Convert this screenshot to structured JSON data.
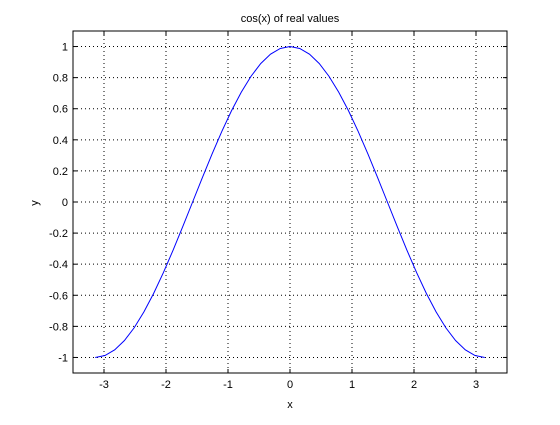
{
  "chart_data": {
    "type": "line",
    "title": "cos(x) of real values",
    "xlabel": "x",
    "ylabel": "y",
    "xlim": [
      -3.5,
      3.5
    ],
    "ylim": [
      -1.1,
      1.1
    ],
    "xticks": [
      -3,
      -2,
      -1,
      0,
      1,
      2,
      3
    ],
    "xtick_labels": [
      "-3",
      "-2",
      "-1",
      "0",
      "1",
      "2",
      "3"
    ],
    "yticks": [
      -1,
      -0.8,
      -0.6,
      -0.4,
      -0.2,
      0,
      0.2,
      0.4,
      0.6,
      0.8,
      1
    ],
    "ytick_labels": [
      "-1",
      "-0.8",
      "-0.6",
      "-0.4",
      "-0.2",
      "0",
      "0.2",
      "0.4",
      "0.6",
      "0.8",
      "1"
    ],
    "grid": true,
    "series": [
      {
        "color": "#0000ff",
        "x": [
          -3.1416,
          -2.9845,
          -2.8274,
          -2.6704,
          -2.5133,
          -2.3562,
          -2.1991,
          -2.042,
          -1.885,
          -1.7279,
          -1.5708,
          -1.4137,
          -1.2566,
          -1.0996,
          -0.9425,
          -0.7854,
          -0.6283,
          -0.4712,
          -0.3142,
          -0.1571,
          0,
          0.1571,
          0.3142,
          0.4712,
          0.6283,
          0.7854,
          0.9425,
          1.0996,
          1.2566,
          1.4137,
          1.5708,
          1.7279,
          1.885,
          2.042,
          2.1991,
          2.3562,
          2.5133,
          2.6704,
          2.8274,
          2.9845,
          3.1416
        ],
        "y": [
          -1,
          -0.9877,
          -0.9511,
          -0.891,
          -0.809,
          -0.7071,
          -0.5878,
          -0.454,
          -0.309,
          -0.1564,
          0,
          0.1564,
          0.309,
          0.454,
          0.5878,
          0.7071,
          0.809,
          0.891,
          0.9511,
          0.9877,
          1,
          0.9877,
          0.9511,
          0.891,
          0.809,
          0.7071,
          0.5878,
          0.454,
          0.309,
          0.1564,
          0,
          -0.1564,
          -0.309,
          -0.454,
          -0.5878,
          -0.7071,
          -0.809,
          -0.891,
          -0.9511,
          -0.9877,
          -1
        ]
      }
    ]
  }
}
